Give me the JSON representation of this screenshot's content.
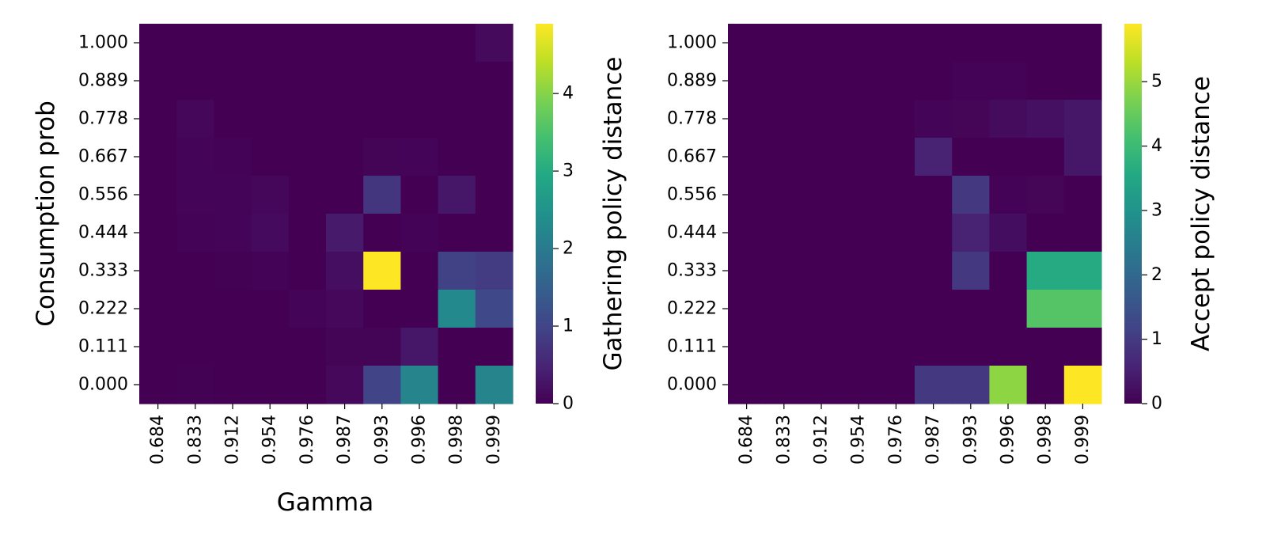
{
  "chart_data": [
    {
      "type": "heatmap",
      "xlabel": "Gamma",
      "ylabel": "Consumption prob",
      "colorbar_label": "Gathering policy distance",
      "colormap": "viridis",
      "colorbar_range": [
        0,
        4.9
      ],
      "colorbar_ticks": [
        "0",
        "1",
        "2",
        "3",
        "4"
      ],
      "x_categories": [
        "0.684",
        "0.833",
        "0.912",
        "0.954",
        "0.976",
        "0.987",
        "0.993",
        "0.996",
        "0.998",
        "0.999"
      ],
      "y_categories": [
        "1.000",
        "0.889",
        "0.778",
        "0.667",
        "0.556",
        "0.444",
        "0.333",
        "0.222",
        "0.111",
        "0.000"
      ],
      "values": [
        [
          0,
          0,
          0,
          0,
          0,
          0,
          0,
          0,
          0,
          0.12
        ],
        [
          0,
          0,
          0,
          0,
          0,
          0,
          0,
          0,
          0,
          0
        ],
        [
          0,
          0.08,
          0,
          0,
          0,
          0,
          0,
          0,
          0,
          0
        ],
        [
          0,
          0.06,
          0.03,
          0,
          0,
          0,
          0.05,
          0.04,
          0,
          0
        ],
        [
          0,
          0.06,
          0.04,
          0.09,
          0,
          0,
          0.75,
          0,
          0.3,
          0
        ],
        [
          0,
          0.03,
          0.04,
          0.13,
          0,
          0.35,
          0,
          0.03,
          0,
          0
        ],
        [
          0,
          0,
          0.02,
          0.03,
          0,
          0.18,
          4.9,
          0,
          0.95,
          0.85
        ],
        [
          0,
          0,
          0,
          0,
          0.04,
          0.1,
          0,
          0,
          2.3,
          1.05
        ],
        [
          0,
          0,
          0,
          0,
          0,
          0.05,
          0.05,
          0.3,
          0,
          0
        ],
        [
          0,
          0.02,
          0,
          0,
          0,
          0.1,
          1.0,
          2.2,
          0,
          2.2
        ]
      ]
    },
    {
      "type": "heatmap",
      "xlabel": "",
      "ylabel": "",
      "colorbar_label": "Accept policy distance",
      "colormap": "viridis",
      "colorbar_range": [
        0,
        5.9
      ],
      "colorbar_ticks": [
        "0",
        "1",
        "2",
        "3",
        "4",
        "5"
      ],
      "x_categories": [
        "0.684",
        "0.833",
        "0.912",
        "0.954",
        "0.976",
        "0.987",
        "0.993",
        "0.996",
        "0.998",
        "0.999"
      ],
      "y_categories": [
        "1.000",
        "0.889",
        "0.778",
        "0.667",
        "0.556",
        "0.444",
        "0.333",
        "0.222",
        "0.111",
        "0.000"
      ],
      "values": [
        [
          0,
          0,
          0,
          0,
          0,
          0,
          0,
          0,
          0,
          0
        ],
        [
          0,
          0,
          0,
          0,
          0,
          0,
          0.03,
          0.04,
          0,
          0
        ],
        [
          0,
          0,
          0,
          0,
          0,
          0.05,
          0.08,
          0.18,
          0.25,
          0.35
        ],
        [
          0,
          0,
          0,
          0,
          0,
          0.55,
          0,
          0,
          0,
          0.35
        ],
        [
          0,
          0,
          0,
          0,
          0,
          0,
          0.95,
          0.04,
          0.08,
          0
        ],
        [
          0,
          0,
          0,
          0,
          0,
          0,
          0.55,
          0.2,
          0,
          0
        ],
        [
          0,
          0,
          0,
          0,
          0,
          0,
          0.95,
          0,
          3.6,
          3.6
        ],
        [
          0,
          0,
          0,
          0,
          0,
          0,
          0,
          0,
          4.3,
          4.3
        ],
        [
          0,
          0,
          0,
          0,
          0,
          0,
          0,
          0,
          0,
          0
        ],
        [
          0,
          0,
          0,
          0,
          0,
          0.95,
          0.95,
          4.9,
          0,
          5.9
        ]
      ]
    }
  ]
}
